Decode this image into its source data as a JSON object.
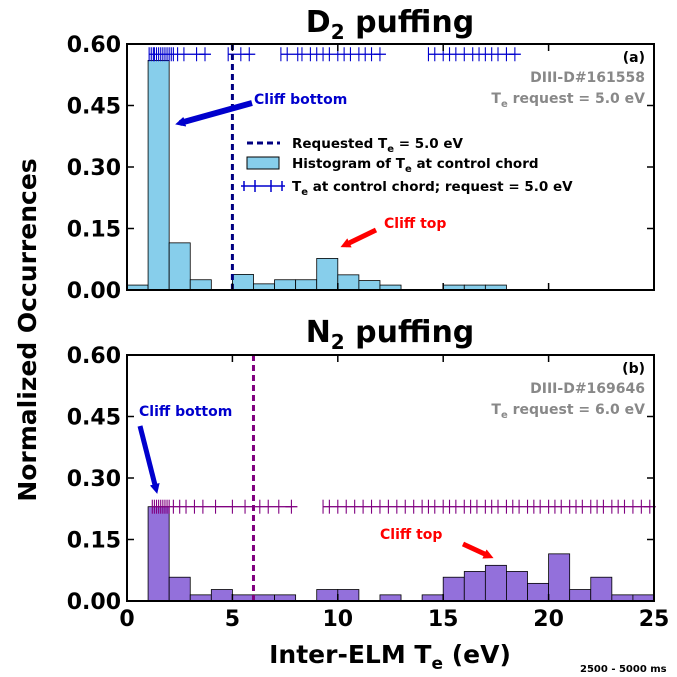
{
  "chart_data": [
    {
      "type": "bar",
      "panel": "(a)",
      "title": "D",
      "title_sub": "2",
      "title_suffix": " puffing",
      "shot": "DIII-D#161558",
      "request_text": "T",
      "request_sub": "e",
      "request_suffix": " request = 5.0 eV",
      "xlim": [
        0,
        25
      ],
      "ylim": [
        0,
        0.6
      ],
      "yticks": [
        "0.00",
        "0.15",
        "0.30",
        "0.45",
        "0.60"
      ],
      "bin_width": 1.0,
      "bin_starts": [
        0,
        1,
        2,
        3,
        4,
        5,
        6,
        7,
        8,
        9,
        10,
        11,
        12,
        13,
        14,
        15,
        16,
        17,
        18,
        19,
        20,
        21,
        22,
        23,
        24
      ],
      "values": [
        0.012,
        0.56,
        0.115,
        0.025,
        0.0,
        0.038,
        0.015,
        0.025,
        0.025,
        0.077,
        0.037,
        0.023,
        0.012,
        0.0,
        0.0,
        0.012,
        0.012,
        0.012,
        0.0,
        0.0,
        0.0,
        0.0,
        0.0,
        0.0,
        0.0
      ],
      "bar_color": "#87ceeb",
      "requested_line_x": 5.0,
      "requested_line_color": "#000080",
      "errorbar_y": 0.575,
      "errorbar_color": "#0000cd",
      "errorbar_points": [
        1.05,
        1.15,
        1.25,
        1.3,
        1.4,
        1.5,
        1.6,
        1.7,
        1.8,
        1.9,
        2.0,
        2.1,
        2.2,
        2.4,
        2.7,
        3.3,
        3.7,
        4.8,
        5.4,
        5.8,
        7.3,
        7.6,
        8.1,
        8.3,
        8.7,
        9.0,
        9.3,
        9.6,
        10.0,
        10.3,
        10.6,
        11.0,
        11.3,
        11.6,
        12.0,
        14.3,
        14.6,
        15.0,
        15.3,
        15.6,
        16.0,
        16.4,
        16.7,
        17.0,
        17.3,
        17.6,
        18.0,
        18.4
      ],
      "legend": {
        "requested": [
          "Requested T",
          "e",
          " = 5.0 eV"
        ],
        "histogram": [
          "Histogram of T",
          "e",
          " at control chord"
        ],
        "errorbar": [
          "T",
          "e",
          " at control chord; request = 5.0 eV"
        ]
      },
      "annotations": [
        {
          "text": "Cliff bottom",
          "color": "#0000cd"
        },
        {
          "text": "Cliff top",
          "color": "#ff0000"
        }
      ]
    },
    {
      "type": "bar",
      "panel": "(b)",
      "title": "N",
      "title_sub": "2",
      "title_suffix": " puffing",
      "shot": "DIII-D#169646",
      "request_text": "T",
      "request_sub": "e",
      "request_suffix": " request = 6.0 eV",
      "xlim": [
        0,
        25
      ],
      "ylim": [
        0,
        0.6
      ],
      "xticks": [
        "0",
        "5",
        "10",
        "15",
        "20",
        "25"
      ],
      "yticks": [
        "0.00",
        "0.15",
        "0.30",
        "0.45",
        "0.60"
      ],
      "bin_width": 1.0,
      "bin_starts": [
        0,
        1,
        2,
        3,
        4,
        5,
        6,
        7,
        8,
        9,
        10,
        11,
        12,
        13,
        14,
        15,
        16,
        17,
        18,
        19,
        20,
        21,
        22,
        23,
        24
      ],
      "values": [
        0.0,
        0.23,
        0.058,
        0.015,
        0.028,
        0.015,
        0.015,
        0.015,
        0.0,
        0.028,
        0.028,
        0.0,
        0.015,
        0.0,
        0.015,
        0.058,
        0.072,
        0.087,
        0.072,
        0.043,
        0.115,
        0.028,
        0.058,
        0.015,
        0.015
      ],
      "bar_color": "#9370db",
      "requested_line_x": 6.0,
      "requested_line_color": "#800080",
      "errorbar_y": 0.23,
      "errorbar_color": "#800080",
      "errorbar_points": [
        1.2,
        1.3,
        1.4,
        1.5,
        1.6,
        1.7,
        1.8,
        1.9,
        2.0,
        2.2,
        2.5,
        2.8,
        3.2,
        3.6,
        4.2,
        5.0,
        5.6,
        6.3,
        6.7,
        7.2,
        7.8,
        9.3,
        9.6,
        10.0,
        10.4,
        10.8,
        11.2,
        11.6,
        12.0,
        12.4,
        12.8,
        13.2,
        13.6,
        14.0,
        14.3,
        14.6,
        15.0,
        15.3,
        15.6,
        16.0,
        16.3,
        16.6,
        17.0,
        17.3,
        17.6,
        18.0,
        18.3,
        18.6,
        19.0,
        19.3,
        19.6,
        20.0,
        20.3,
        20.6,
        21.0,
        21.3,
        21.6,
        22.0,
        22.3,
        22.6,
        23.0,
        23.3,
        23.6,
        24.0,
        24.4,
        24.8
      ],
      "annotations": [
        {
          "text": "Cliff bottom",
          "color": "#0000cd"
        },
        {
          "text": "Cliff top",
          "color": "#ff0000"
        }
      ]
    }
  ],
  "ylabel": "Normalized Occurrences",
  "xlabel": [
    "Inter-ELM T",
    "e",
    " (eV)"
  ],
  "footer": "2500 - 5000 ms"
}
